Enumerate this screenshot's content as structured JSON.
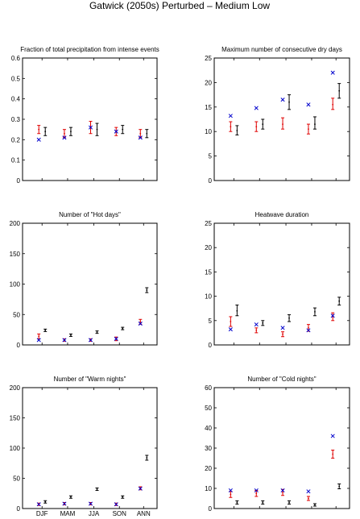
{
  "figure": {
    "title": "Gatwick (2050s) Perturbed – Medium Low"
  },
  "colors": {
    "red": "#e00000",
    "black": "#000000",
    "blue": "#0000cc"
  },
  "chart_data": [
    {
      "type": "scatter",
      "title": "Fraction of total precipitation from intense events",
      "categories": [
        "DJF",
        "MAM",
        "JJA",
        "SON",
        "ANN"
      ],
      "ylim": [
        0,
        0.6
      ],
      "yticks": [
        0,
        0.1,
        0.2,
        0.3,
        0.4,
        0.5,
        0.6
      ],
      "ytick_labels": [
        "0",
        "0.1",
        "0.2",
        "0.3",
        "0.4",
        "0.5",
        "0.6"
      ],
      "xtick_labels": [],
      "series": [
        {
          "marker": "errorbar",
          "color": "red",
          "values": [
            0.25,
            0.23,
            0.26,
            0.24,
            0.23
          ],
          "low": [
            0.23,
            0.21,
            0.23,
            0.22,
            0.21
          ],
          "high": [
            0.27,
            0.25,
            0.29,
            0.26,
            0.25
          ]
        },
        {
          "marker": "errorbar",
          "color": "black",
          "values": [
            0.24,
            0.24,
            0.25,
            0.25,
            0.23
          ],
          "low": [
            0.22,
            0.22,
            0.22,
            0.23,
            0.21
          ],
          "high": [
            0.26,
            0.26,
            0.28,
            0.27,
            0.25
          ]
        },
        {
          "marker": "x",
          "color": "blue",
          "values": [
            0.2,
            0.21,
            0.26,
            0.24,
            0.21
          ]
        }
      ]
    },
    {
      "type": "scatter",
      "title": "Maximum number of consecutive dry days",
      "categories": [
        "DJF",
        "MAM",
        "JJA",
        "SON",
        "ANN"
      ],
      "ylim": [
        0,
        25
      ],
      "yticks": [
        0,
        5,
        10,
        15,
        20,
        25
      ],
      "ytick_labels": [
        "0",
        "5",
        "10",
        "15",
        "20",
        "25"
      ],
      "xtick_labels": [],
      "series": [
        {
          "marker": "errorbar",
          "color": "red",
          "values": [
            11,
            11,
            11.5,
            10.5,
            15.5
          ],
          "low": [
            10,
            10,
            10.5,
            9.5,
            14.5
          ],
          "high": [
            12,
            12,
            12.8,
            11.5,
            16.8
          ]
        },
        {
          "marker": "errorbar",
          "color": "black",
          "values": [
            10.2,
            11.5,
            16,
            11.5,
            18.3
          ],
          "low": [
            9.3,
            10.5,
            14.5,
            10.5,
            16.8
          ],
          "high": [
            11.2,
            12.5,
            17.5,
            13,
            19.8
          ]
        },
        {
          "marker": "x",
          "color": "blue",
          "values": [
            13.2,
            14.8,
            16.5,
            15.5,
            22
          ]
        }
      ]
    },
    {
      "type": "scatter",
      "title": "Number of \"Hot days\"",
      "categories": [
        "DJF",
        "MAM",
        "JJA",
        "SON",
        "ANN"
      ],
      "ylim": [
        0,
        200
      ],
      "yticks": [
        0,
        50,
        100,
        150,
        200
      ],
      "ytick_labels": [
        "0",
        "50",
        "100",
        "150",
        "200"
      ],
      "xtick_labels": [],
      "series": [
        {
          "marker": "errorbar",
          "color": "red",
          "values": [
            14,
            8,
            8,
            10,
            38
          ],
          "low": [
            10,
            6,
            6,
            7,
            34
          ],
          "high": [
            18,
            10,
            10,
            13,
            42
          ]
        },
        {
          "marker": "errorbar",
          "color": "black",
          "values": [
            24,
            16,
            21,
            27,
            90
          ],
          "low": [
            22,
            14,
            19,
            25,
            86
          ],
          "high": [
            26,
            18,
            23,
            29,
            94
          ]
        },
        {
          "marker": "x",
          "color": "blue",
          "values": [
            8,
            8,
            8,
            10,
            35
          ]
        }
      ]
    },
    {
      "type": "scatter",
      "title": "Heatwave duration",
      "categories": [
        "DJF",
        "MAM",
        "JJA",
        "SON",
        "ANN"
      ],
      "ylim": [
        0,
        25
      ],
      "yticks": [
        0,
        5,
        10,
        15,
        20,
        25
      ],
      "ytick_labels": [
        "0",
        "5",
        "10",
        "15",
        "20",
        "25"
      ],
      "xtick_labels": [],
      "series": [
        {
          "marker": "errorbar",
          "color": "red",
          "values": [
            4.8,
            3,
            2.2,
            3.5,
            5.8
          ],
          "low": [
            3.8,
            2.5,
            1.7,
            2.8,
            5
          ],
          "high": [
            5.8,
            3.5,
            2.7,
            4.2,
            6.6
          ]
        },
        {
          "marker": "errorbar",
          "color": "black",
          "values": [
            7,
            4.5,
            5.5,
            6.8,
            9
          ],
          "low": [
            6,
            4,
            4.8,
            6,
            8.2
          ],
          "high": [
            8.2,
            5,
            6.2,
            7.6,
            9.8
          ]
        },
        {
          "marker": "x",
          "color": "blue",
          "values": [
            3.2,
            4.2,
            3.5,
            3,
            6
          ]
        }
      ]
    },
    {
      "type": "scatter",
      "title": "Number of \"Warm nights\"",
      "categories": [
        "DJF",
        "MAM",
        "JJA",
        "SON",
        "ANN"
      ],
      "ylim": [
        0,
        200
      ],
      "yticks": [
        0,
        50,
        100,
        150,
        200
      ],
      "ytick_labels": [
        "0",
        "50",
        "100",
        "150",
        "200"
      ],
      "xtick_labels": [
        "DJF",
        "MAM",
        "JJA",
        "SON",
        "ANN"
      ],
      "series": [
        {
          "marker": "errorbar",
          "color": "red",
          "values": [
            7,
            8,
            8,
            7,
            33
          ],
          "low": [
            5,
            6,
            6,
            5,
            31
          ],
          "high": [
            9,
            10,
            10,
            9,
            36
          ]
        },
        {
          "marker": "errorbar",
          "color": "black",
          "values": [
            11,
            19,
            32,
            19,
            84
          ],
          "low": [
            9,
            17,
            30,
            17,
            80
          ],
          "high": [
            13,
            21,
            34,
            21,
            88
          ]
        },
        {
          "marker": "x",
          "color": "blue",
          "values": [
            7,
            8,
            8,
            7,
            33
          ]
        }
      ]
    },
    {
      "type": "scatter",
      "title": "Number of \"Cold nights\"",
      "categories": [
        "DJF",
        "MAM",
        "JJA",
        "SON",
        "ANN"
      ],
      "ylim": [
        0,
        60
      ],
      "yticks": [
        0,
        10,
        20,
        30,
        40,
        50,
        60
      ],
      "ytick_labels": [
        "0",
        "10",
        "20",
        "30",
        "40",
        "50",
        "60"
      ],
      "xtick_labels": [],
      "series": [
        {
          "marker": "errorbar",
          "color": "red",
          "values": [
            7,
            7.5,
            8,
            5,
            27
          ],
          "low": [
            5.5,
            6,
            6.5,
            4,
            25
          ],
          "high": [
            8.5,
            9,
            9.5,
            6,
            29
          ]
        },
        {
          "marker": "errorbar",
          "color": "black",
          "values": [
            3,
            3,
            3,
            1.8,
            11
          ],
          "low": [
            2.2,
            2.2,
            2.2,
            1.2,
            9.8
          ],
          "high": [
            3.8,
            3.8,
            3.8,
            2.4,
            12.2
          ]
        },
        {
          "marker": "x",
          "color": "blue",
          "values": [
            9,
            9,
            9,
            8.5,
            36
          ]
        }
      ]
    }
  ]
}
